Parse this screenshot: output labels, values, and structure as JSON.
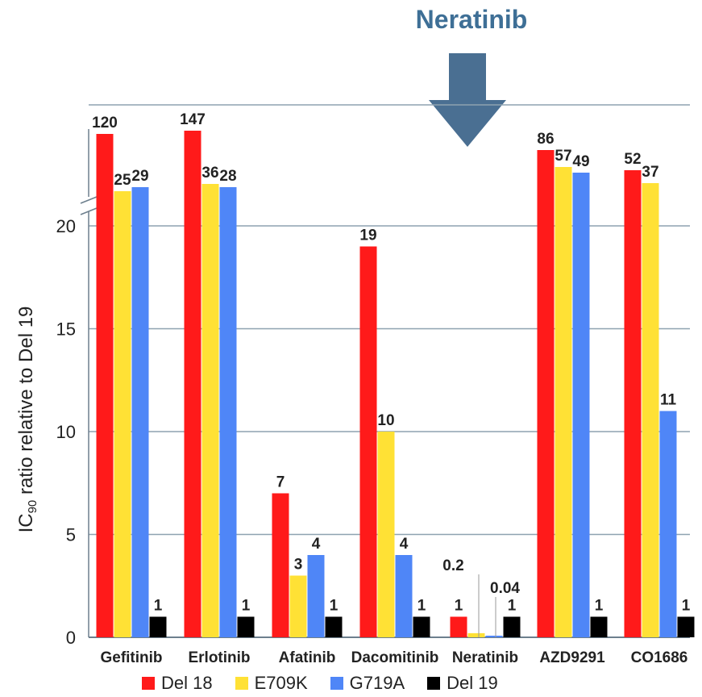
{
  "callout": {
    "title": "Neratinib"
  },
  "chart_data": {
    "type": "bar",
    "categories": [
      "Gefitinib",
      "Erlotinib",
      "Afatinib",
      "Dacomitinib",
      "Neratinib",
      "AZD9291",
      "CO1686"
    ],
    "ylabel_prefix": "IC",
    "ylabel_sub": "90",
    "ylabel_suffix": " ratio relative to Del 19",
    "yticks": [
      0,
      5,
      10,
      15,
      20
    ],
    "ylim": [
      0,
      20
    ],
    "axis_break": true,
    "grid": true,
    "legend_position": "bottom",
    "series": [
      {
        "name": "Del 18",
        "color": "#ff1a1a",
        "values": [
          120,
          147,
          7,
          19,
          1,
          86,
          52
        ],
        "labels": [
          "120",
          "147",
          "7",
          "19",
          "1",
          "86",
          "52"
        ]
      },
      {
        "name": "E709K",
        "color": "#ffe135",
        "values": [
          25,
          36,
          3,
          10,
          0.2,
          57,
          37
        ],
        "labels": [
          "25",
          "36",
          "3",
          "10",
          "0.2",
          "57",
          "37"
        ]
      },
      {
        "name": "G719A",
        "color": "#4f86f7",
        "values": [
          29,
          28,
          4,
          4,
          0.04,
          49,
          11
        ],
        "labels": [
          "29",
          "28",
          "4",
          "4",
          "0.04",
          "49",
          "11"
        ]
      },
      {
        "name": "Del 19",
        "color": "#000000",
        "values": [
          1,
          1,
          1,
          1,
          1,
          1,
          1
        ],
        "labels": [
          "1",
          "1",
          "1",
          "1",
          "1",
          "1",
          "1"
        ]
      }
    ]
  }
}
